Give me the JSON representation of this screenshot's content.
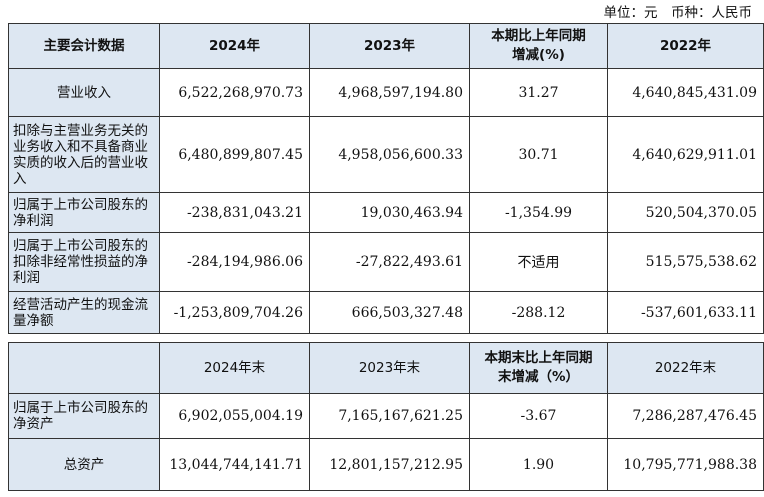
{
  "unit_note": "单位：元　币种：人民币",
  "table1": {
    "headers": [
      "主要会计数据",
      "2024年",
      "2023年",
      "本期比上年同期增减(%)",
      "2022年"
    ],
    "rows": [
      {
        "label": "营业收入",
        "v2024": "6,522,268,970.73",
        "v2023": "4,968,597,194.80",
        "change": "31.27",
        "v2022": "4,640,845,431.09"
      },
      {
        "label": "扣除与主营业务无关的业务收入和不具备商业实质的收入后的营业收入",
        "v2024": "6,480,899,807.45",
        "v2023": "4,958,056,600.33",
        "change": "30.71",
        "v2022": "4,640,629,911.01"
      },
      {
        "label": "归属于上市公司股东的净利润",
        "v2024": "-238,831,043.21",
        "v2023": "19,030,463.94",
        "change": "-1,354.99",
        "v2022": "520,504,370.05"
      },
      {
        "label": "归属于上市公司股东的扣除非经常性损益的净利润",
        "v2024": "-284,194,986.06",
        "v2023": "-27,822,493.61",
        "change": "不适用",
        "v2022": "515,575,538.62"
      },
      {
        "label": "经营活动产生的现金流量净额",
        "v2024": "-1,253,809,704.26",
        "v2023": "666,503,327.48",
        "change": "-288.12",
        "v2022": "-537,601,633.11"
      }
    ]
  },
  "table2": {
    "headers": [
      "",
      "2024年末",
      "2023年末",
      "本期末比上年同期末增减（%）",
      "2022年末"
    ],
    "rows": [
      {
        "label": "归属于上市公司股东的净资产",
        "v2024": "6,902,055,004.19",
        "v2023": "7,165,167,621.25",
        "change": "-3.67",
        "v2022": "7,286,287,476.45"
      },
      {
        "label": "总资产",
        "v2024": "13,044,744,141.71",
        "v2023": "12,801,157,212.95",
        "change": "1.90",
        "v2022": "10,795,771,988.38"
      }
    ]
  }
}
